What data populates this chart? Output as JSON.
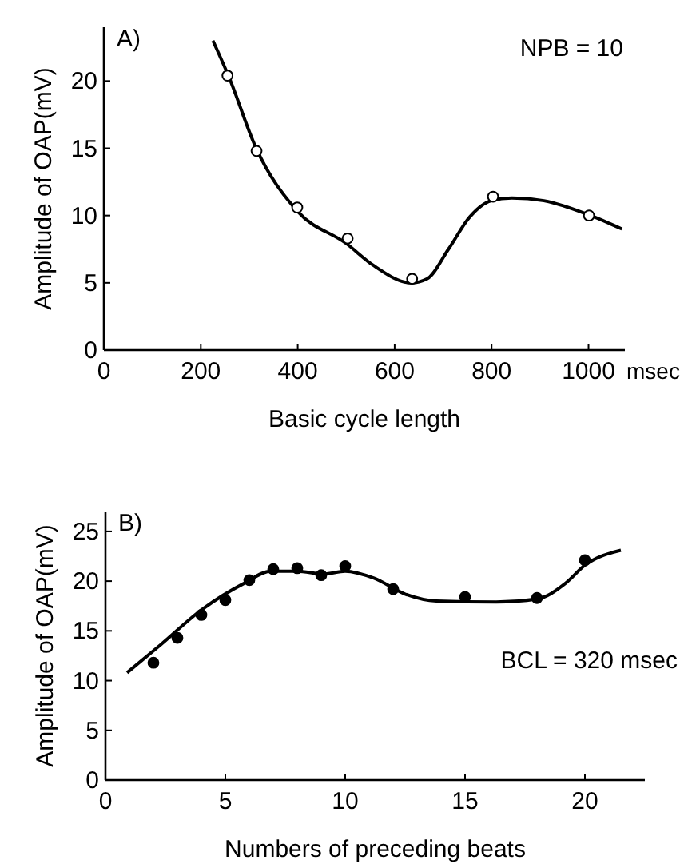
{
  "chart_data": [
    {
      "type": "line",
      "title": "A)",
      "xlabel": "Basic cycle length",
      "ylabel": "Amplitude of OAP(mV)",
      "xlim": [
        0,
        1075
      ],
      "ylim": [
        0,
        24
      ],
      "xticks": [
        0,
        200,
        400,
        600,
        800,
        1000
      ],
      "yticks": [
        0,
        5,
        10,
        15,
        20
      ],
      "annotations": [
        "NPB = 10",
        "msec"
      ],
      "grid": false,
      "series": [
        {
          "type": "scatter",
          "marker": "circle",
          "color": "#000000",
          "x": [
            255,
            315,
            399,
            503,
            636,
            803,
            1001
          ],
          "values": [
            20.4,
            14.8,
            10.6,
            8.3,
            5.3,
            11.4,
            10.0
          ]
        },
        {
          "color": "#000000",
          "marker": "none",
          "x": [
            225,
            258,
            313,
            400,
            501,
            556,
            634,
            667,
            711,
            755,
            799,
            842,
            908,
            997,
            1069
          ],
          "values": [
            23.0,
            20.3,
            15.1,
            10.3,
            7.9,
            6.3,
            5.0,
            5.3,
            7.5,
            9.9,
            11.1,
            11.3,
            11.1,
            10.1,
            9.0
          ]
        }
      ]
    },
    {
      "type": "line",
      "title": "B)",
      "xlabel": "Numbers of preceding beats",
      "ylabel": "Amplitude of OAP(mV)",
      "xlim": [
        0,
        22.5
      ],
      "ylim": [
        0,
        27
      ],
      "xticks": [
        0,
        5,
        10,
        15,
        20
      ],
      "yticks": [
        0,
        5,
        10,
        15,
        20,
        25
      ],
      "annotations": [
        "BCL = 320 msec"
      ],
      "grid": false,
      "series": [
        {
          "type": "scatter",
          "marker": "circle",
          "color": "#000000",
          "x": [
            2,
            3,
            4,
            5,
            6,
            7,
            8,
            9,
            10,
            12,
            15,
            18,
            20
          ],
          "values": [
            11.8,
            14.3,
            16.6,
            18.1,
            20.1,
            21.2,
            21.3,
            20.6,
            21.5,
            19.2,
            18.4,
            18.3,
            22.1
          ]
        },
        {
          "color": "#000000",
          "marker": "none",
          "x": [
            0.9,
            2.3,
            4.0,
            5.8,
            6.9,
            8.0,
            9.1,
            10.0,
            11.2,
            12.5,
            13.8,
            16.3,
            18.0,
            19.2,
            20.0,
            21.5
          ],
          "values": [
            10.8,
            13.6,
            17.1,
            19.8,
            21.0,
            21.0,
            20.7,
            21.0,
            20.3,
            18.7,
            18.0,
            17.9,
            18.2,
            19.8,
            21.6,
            23.1
          ]
        }
      ]
    }
  ]
}
